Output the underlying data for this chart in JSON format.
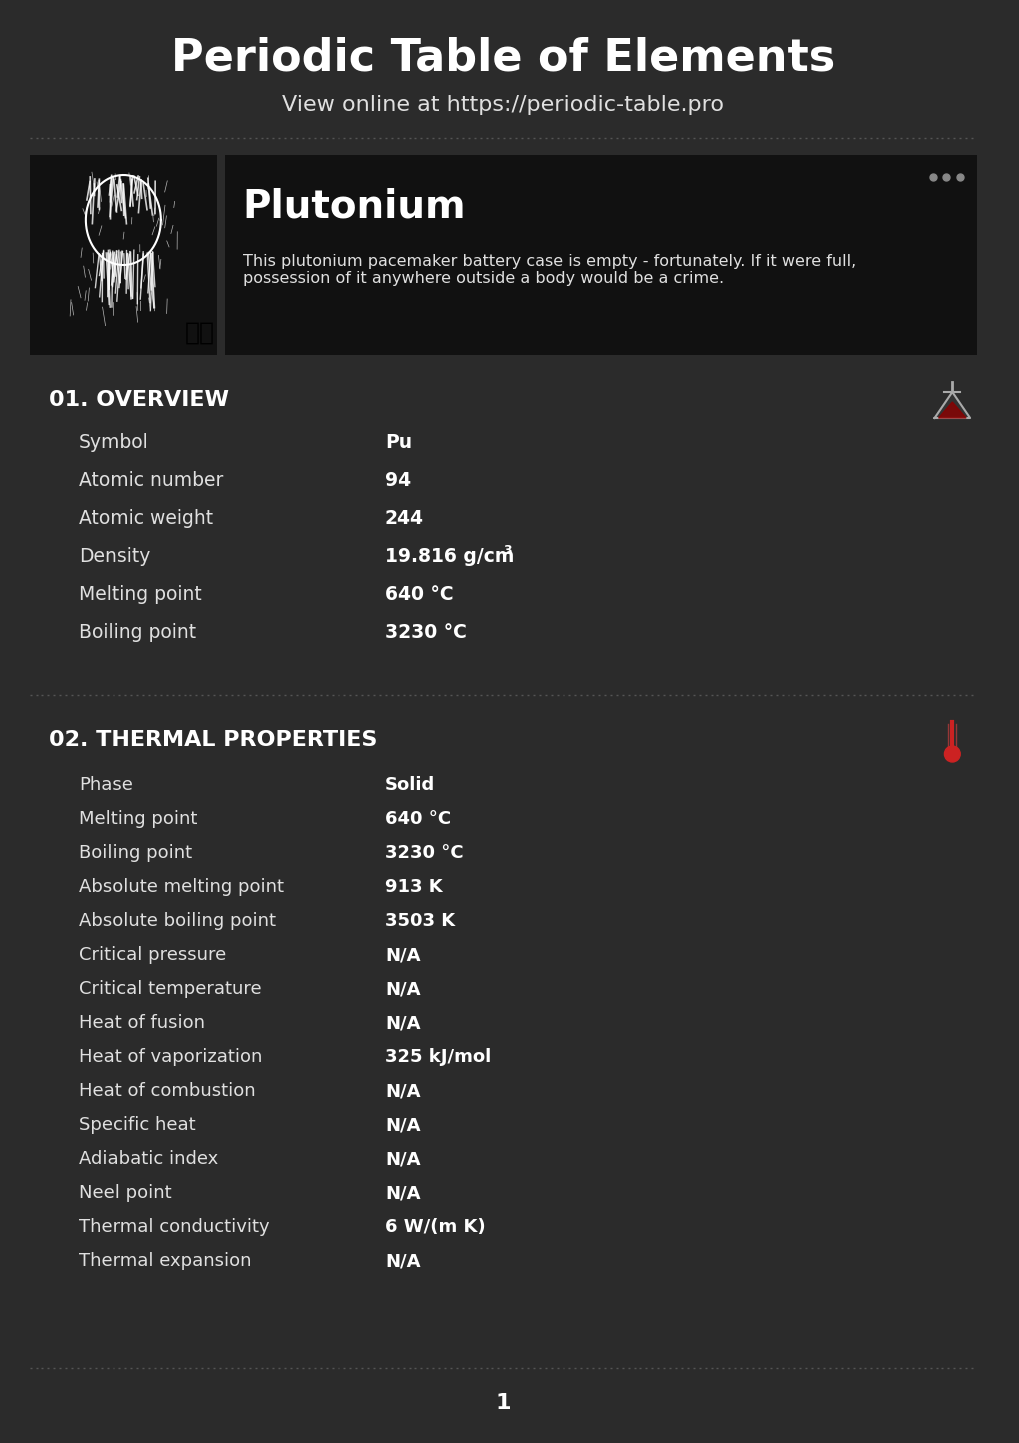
{
  "bg_color": "#2b2b2b",
  "header_bg": "#2b2b2b",
  "card_bg": "#1a1a1a",
  "text_white": "#ffffff",
  "text_light": "#e0e0e0",
  "text_gray": "#cccccc",
  "title": "Periodic Table of Elements",
  "subtitle": "View online at https://periodic-table.pro",
  "element_name": "Plutonium",
  "element_desc": "This plutonium pacemaker battery case is empty - fortunately. If it were full,\npossession of it anywhere outside a body would be a crime.",
  "section1_title": "01. OVERVIEW",
  "overview_rows": [
    [
      "Symbol",
      "Pu"
    ],
    [
      "Atomic number",
      "94"
    ],
    [
      "Atomic weight",
      "244"
    ],
    [
      "Density",
      "19.816 g/cm³"
    ],
    [
      "Melting point",
      "640 °C"
    ],
    [
      "Boiling point",
      "3230 °C"
    ]
  ],
  "section2_title": "02. THERMAL PROPERTIES",
  "thermal_rows": [
    [
      "Phase",
      "Solid",
      true
    ],
    [
      "Melting point",
      "640 °C",
      false
    ],
    [
      "Boiling point",
      "3230 °C",
      false
    ],
    [
      "Absolute melting point",
      "913 K",
      false
    ],
    [
      "Absolute boiling point",
      "3503 K",
      false
    ],
    [
      "Critical pressure",
      "N/A",
      false
    ],
    [
      "Critical temperature",
      "N/A",
      false
    ],
    [
      "Heat of fusion",
      "N/A",
      false
    ],
    [
      "Heat of vaporization",
      "325 kJ/mol",
      false
    ],
    [
      "Heat of combustion",
      "N/A",
      false
    ],
    [
      "Specific heat",
      "N/A",
      false
    ],
    [
      "Adiabatic index",
      "N/A",
      false
    ],
    [
      "Neel point",
      "N/A",
      false
    ],
    [
      "Thermal conductivity",
      "6 W/(m K)",
      false
    ],
    [
      "Thermal expansion",
      "N/A",
      false
    ]
  ],
  "page_number": "1"
}
